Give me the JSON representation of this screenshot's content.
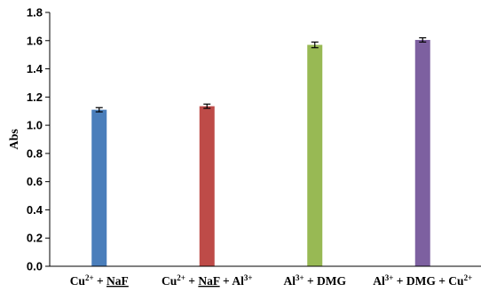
{
  "chart_data": {
    "type": "bar",
    "title": "",
    "xlabel": "",
    "ylabel": "Abs",
    "ylim": [
      0,
      1.8
    ],
    "yticks": [
      "0.0",
      "0.2",
      "0.4",
      "0.6",
      "0.8",
      "1.0",
      "1.2",
      "1.4",
      "1.6",
      "1.8"
    ],
    "grid": false,
    "legend": "none",
    "categories": [
      {
        "parts": [
          {
            "t": "Cu"
          },
          {
            "t": "2+",
            "sup": true
          },
          {
            "t": " + "
          },
          {
            "t": "NaF",
            "underline": true
          }
        ]
      },
      {
        "parts": [
          {
            "t": "Cu"
          },
          {
            "t": "2+",
            "sup": true
          },
          {
            "t": " + "
          },
          {
            "t": "NaF",
            "underline": true
          },
          {
            "t": " + Al"
          },
          {
            "t": "3+",
            "sup": true
          }
        ]
      },
      {
        "parts": [
          {
            "t": "Al"
          },
          {
            "t": "3+",
            "sup": true
          },
          {
            "t": " + DMG"
          }
        ]
      },
      {
        "parts": [
          {
            "t": "Al"
          },
          {
            "t": "3+",
            "sup": true
          },
          {
            "t": " + DMG + Cu"
          },
          {
            "t": "2+",
            "sup": true
          }
        ]
      }
    ],
    "values": [
      1.11,
      1.135,
      1.57,
      1.605
    ],
    "errors": [
      0.015,
      0.015,
      0.02,
      0.015
    ],
    "colors": [
      "#4a7ebb",
      "#be4b48",
      "#98b954",
      "#7d60a0"
    ]
  }
}
